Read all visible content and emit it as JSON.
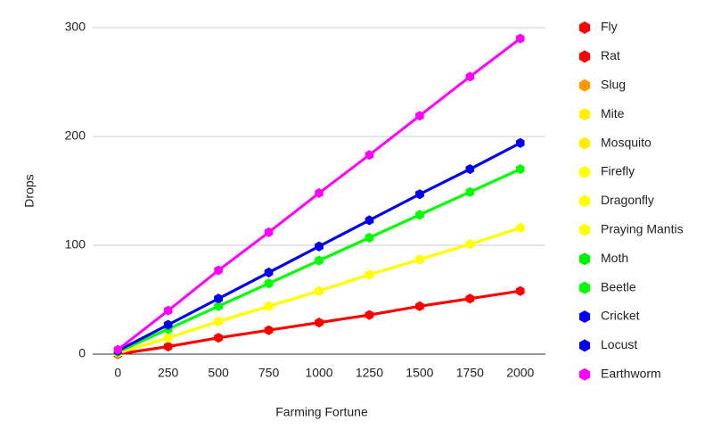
{
  "chart_data": {
    "type": "line",
    "x_label": "Farming Fortune",
    "y_label": "Drops",
    "categories": [
      "0",
      "250",
      "500",
      "750",
      "1000",
      "1250",
      "1500",
      "1750",
      "2000"
    ],
    "ylim": [
      0,
      300
    ],
    "yticks": [
      0,
      100,
      200,
      300
    ],
    "grid": true,
    "legend": "right",
    "series": [
      {
        "name": "Fly",
        "color": "#ff0000",
        "values": [
          0,
          7,
          15,
          22,
          29,
          36,
          44,
          51,
          58
        ]
      },
      {
        "name": "Rat",
        "color": "#ff0000",
        "values": [
          0,
          7,
          15,
          22,
          29,
          36,
          44,
          51,
          58
        ]
      },
      {
        "name": "Slug",
        "color": "#ff9900",
        "values": [
          1,
          15,
          30,
          44,
          58,
          73,
          87,
          101,
          116
        ]
      },
      {
        "name": "Mite",
        "color": "#ffee00",
        "values": [
          1,
          15,
          30,
          44,
          58,
          73,
          87,
          101,
          116
        ]
      },
      {
        "name": "Mosquito",
        "color": "#ffee00",
        "values": [
          1,
          15,
          30,
          44,
          58,
          73,
          87,
          101,
          116
        ]
      },
      {
        "name": "Firefly",
        "color": "#ffff00",
        "values": [
          1,
          15,
          30,
          44,
          58,
          73,
          87,
          101,
          116
        ]
      },
      {
        "name": "Dragonfly",
        "color": "#ffff00",
        "values": [
          1,
          15,
          30,
          44,
          58,
          73,
          87,
          101,
          116
        ]
      },
      {
        "name": "Praying Mantis",
        "color": "#ffff00",
        "values": [
          1,
          15,
          30,
          44,
          58,
          73,
          87,
          101,
          116
        ]
      },
      {
        "name": "Moth",
        "color": "#00ee00",
        "values": [
          2,
          23,
          44,
          65,
          86,
          107,
          128,
          149,
          170
        ]
      },
      {
        "name": "Beetle",
        "color": "#00ff00",
        "values": [
          2,
          23,
          44,
          65,
          86,
          107,
          128,
          149,
          170
        ]
      },
      {
        "name": "Cricket",
        "color": "#0000ff",
        "values": [
          3,
          27,
          51,
          75,
          99,
          123,
          147,
          170,
          194
        ]
      },
      {
        "name": "Locust",
        "color": "#0000ee",
        "values": [
          3,
          27,
          51,
          75,
          99,
          123,
          147,
          170,
          194
        ]
      },
      {
        "name": "Earthworm",
        "color": "#ff00ff",
        "values": [
          4,
          40,
          77,
          112,
          148,
          183,
          219,
          255,
          290
        ]
      }
    ]
  }
}
